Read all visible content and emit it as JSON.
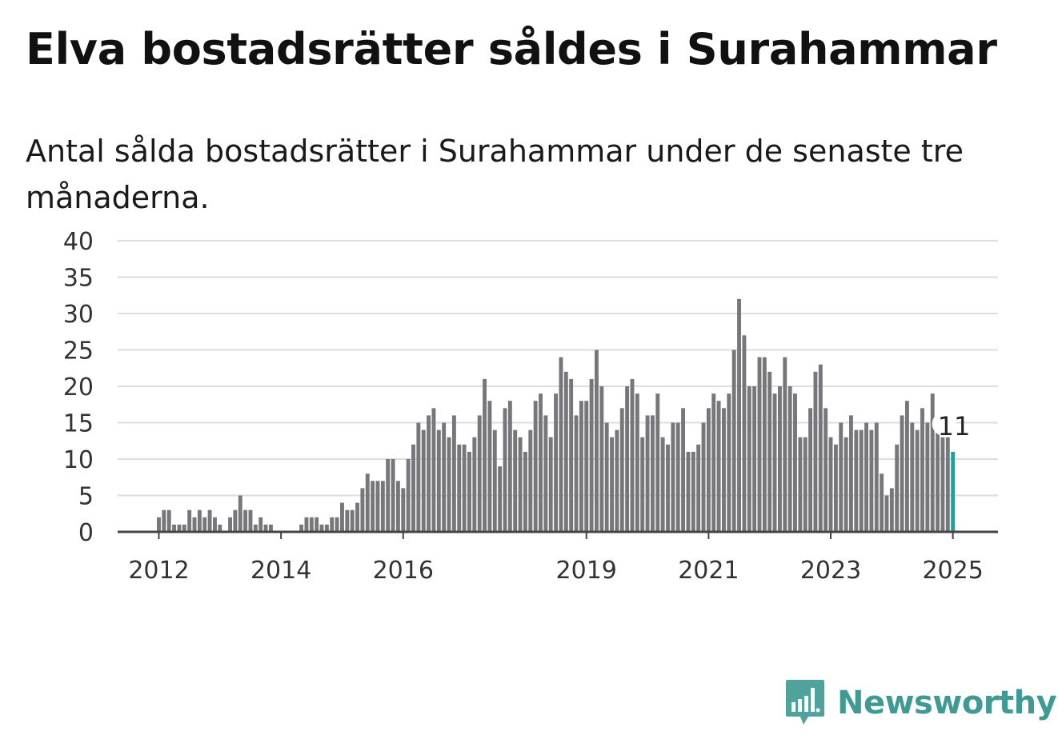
{
  "title": "Elva bostadsrätter såldes i Surahammar",
  "subtitle": "Antal sålda bostadsrätter i Surahammar under de senaste tre månaderna.",
  "brand": {
    "name": "Newsworthy",
    "icon": "newsworthy-chart-logo-icon"
  },
  "colors": {
    "bar": "#77767b",
    "highlight": "#2a9d96",
    "grid": "#dddddd",
    "axis": "#444444",
    "brand": "#3f9a93"
  },
  "chart_data": {
    "type": "bar",
    "x_axis": "monthly time series, one bar per month from January 2012 to January 2025",
    "start": "2012-01",
    "end": "2025-01",
    "xticks": [
      "2012",
      "2014",
      "2016",
      "2019",
      "2021",
      "2023",
      "2025"
    ],
    "yticks": [
      0,
      5,
      10,
      15,
      20,
      25,
      30,
      35,
      40
    ],
    "ylim": [
      0,
      40
    ],
    "grid": true,
    "legend": "none",
    "values": [
      2,
      3,
      3,
      1,
      1,
      1,
      3,
      2,
      3,
      2,
      3,
      2,
      1,
      0,
      2,
      3,
      5,
      3,
      3,
      1,
      2,
      1,
      1,
      0,
      0,
      0,
      0,
      0,
      1,
      2,
      2,
      2,
      1,
      1,
      2,
      2,
      4,
      3,
      3,
      4,
      6,
      8,
      7,
      7,
      7,
      10,
      10,
      7,
      6,
      10,
      12,
      15,
      14,
      16,
      17,
      14,
      15,
      13,
      16,
      12,
      12,
      11,
      13,
      16,
      21,
      18,
      14,
      9,
      17,
      18,
      14,
      13,
      11,
      14,
      18,
      19,
      16,
      13,
      19,
      24,
      22,
      21,
      16,
      18,
      18,
      21,
      25,
      20,
      15,
      13,
      14,
      17,
      20,
      21,
      19,
      13,
      16,
      16,
      19,
      13,
      12,
      15,
      15,
      17,
      11,
      11,
      12,
      15,
      17,
      19,
      18,
      17,
      19,
      25,
      32,
      27,
      20,
      20,
      24,
      24,
      22,
      19,
      20,
      24,
      20,
      19,
      13,
      13,
      17,
      22,
      23,
      17,
      13,
      12,
      15,
      13,
      16,
      14,
      14,
      15,
      14,
      15,
      8,
      5,
      6,
      12,
      16,
      18,
      15,
      14,
      17,
      15,
      19,
      16,
      13,
      13,
      11
    ],
    "highlight_index": 156,
    "annotation": {
      "label": "11",
      "value": 11
    }
  }
}
